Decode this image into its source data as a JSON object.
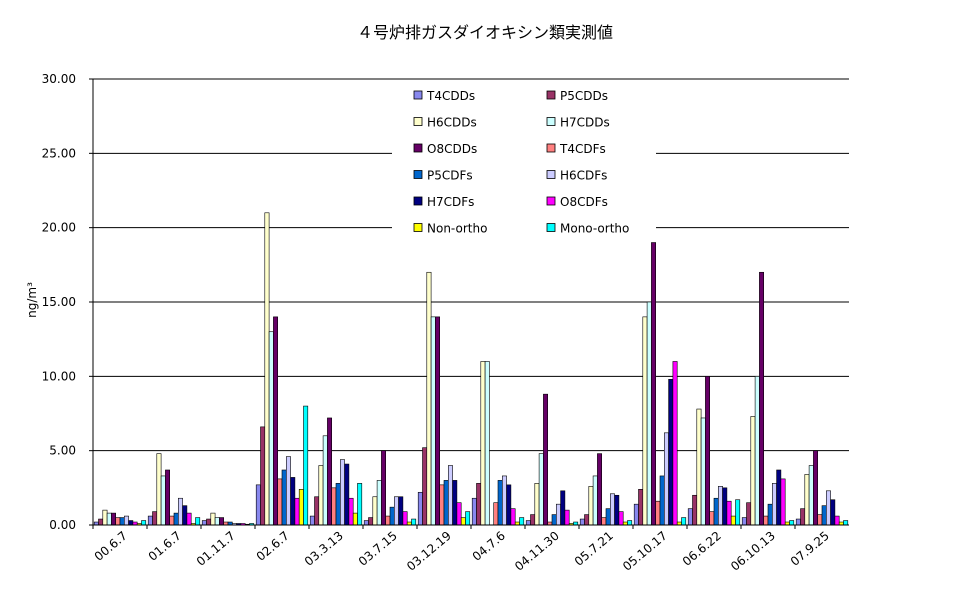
{
  "chart_data": {
    "type": "bar",
    "title": "４号炉排ガスダイオキシン類実測値",
    "ylabel": "ng/m³",
    "ylim": [
      0,
      30
    ],
    "yticks": [
      "0.00",
      "5.00",
      "10.00",
      "15.00",
      "20.00",
      "25.00",
      "30.00"
    ],
    "grid": true,
    "legend_position": "top-center",
    "categories": [
      "00.6.7",
      "01.6.7",
      "01.11.7",
      "02.6.7",
      "03.3.13",
      "03.7.15",
      "03.12.19",
      "04.7.6",
      "04.11.30",
      "05.7.21",
      "05.10.17",
      "06.6.22",
      "06.10.13",
      "07.9.25"
    ],
    "series": [
      {
        "name": "T4CDDs",
        "color": "#8888EE",
        "values": [
          0.2,
          0.6,
          0.3,
          2.7,
          0.6,
          0.3,
          2.2,
          1.8,
          0.3,
          0.4,
          1.4,
          1.1,
          0.5,
          0.4
        ]
      },
      {
        "name": "P5CDDs",
        "color": "#993366",
        "values": [
          0.4,
          0.9,
          0.4,
          6.6,
          1.9,
          0.5,
          5.2,
          2.8,
          0.7,
          0.7,
          2.4,
          2.0,
          1.5,
          1.1
        ]
      },
      {
        "name": "H6CDDs",
        "color": "#FFFFCC",
        "values": [
          1.0,
          4.8,
          0.8,
          21.0,
          4.0,
          1.9,
          17.0,
          11.0,
          2.8,
          2.6,
          14.0,
          7.8,
          7.3,
          3.4
        ]
      },
      {
        "name": "H7CDDs",
        "color": "#CCFFFF",
        "values": [
          0.8,
          3.3,
          0.5,
          13.0,
          6.0,
          3.0,
          14.0,
          11.0,
          4.8,
          3.3,
          15.0,
          7.2,
          10.0,
          4.0
        ]
      },
      {
        "name": "O8CDDs",
        "color": "#660066",
        "values": [
          0.8,
          3.7,
          0.5,
          14.0,
          7.2,
          5.0,
          14.0,
          0.0,
          8.8,
          4.8,
          19.0,
          10.0,
          17.0,
          5.0
        ]
      },
      {
        "name": "T4CDFs",
        "color": "#FF8080",
        "values": [
          0.5,
          0.6,
          0.2,
          3.1,
          2.5,
          0.6,
          2.7,
          1.5,
          0.2,
          0.5,
          1.6,
          0.9,
          0.6,
          0.7
        ]
      },
      {
        "name": "P5CDFs",
        "color": "#0066CC",
        "values": [
          0.5,
          0.8,
          0.2,
          3.7,
          2.8,
          1.2,
          3.0,
          3.0,
          0.7,
          1.1,
          3.3,
          1.8,
          1.4,
          1.3
        ]
      },
      {
        "name": "H6CDFs",
        "color": "#CCCCFF",
        "values": [
          0.6,
          1.8,
          0.1,
          4.6,
          4.4,
          1.9,
          4.0,
          3.3,
          1.4,
          2.1,
          6.2,
          2.6,
          2.8,
          2.3
        ]
      },
      {
        "name": "H7CDFs",
        "color": "#000080",
        "values": [
          0.3,
          1.3,
          0.1,
          3.2,
          4.1,
          1.9,
          3.0,
          2.7,
          2.3,
          2.0,
          9.8,
          2.5,
          3.7,
          1.7
        ]
      },
      {
        "name": "O8CDFs",
        "color": "#FF00FF",
        "values": [
          0.2,
          0.8,
          0.1,
          1.8,
          1.8,
          0.9,
          1.5,
          1.1,
          1.0,
          0.9,
          11.0,
          1.6,
          3.1,
          0.6
        ]
      },
      {
        "name": "Non-ortho",
        "color": "#FFFF00",
        "values": [
          0.1,
          0.1,
          0.05,
          2.4,
          0.8,
          0.2,
          0.5,
          0.2,
          0.1,
          0.2,
          0.2,
          0.6,
          0.2,
          0.2
        ]
      },
      {
        "name": "Mono-ortho",
        "color": "#00FFFF",
        "values": [
          0.3,
          0.5,
          0.1,
          8.0,
          2.8,
          0.4,
          0.9,
          0.5,
          0.2,
          0.3,
          0.5,
          1.7,
          0.3,
          0.3
        ]
      }
    ]
  }
}
